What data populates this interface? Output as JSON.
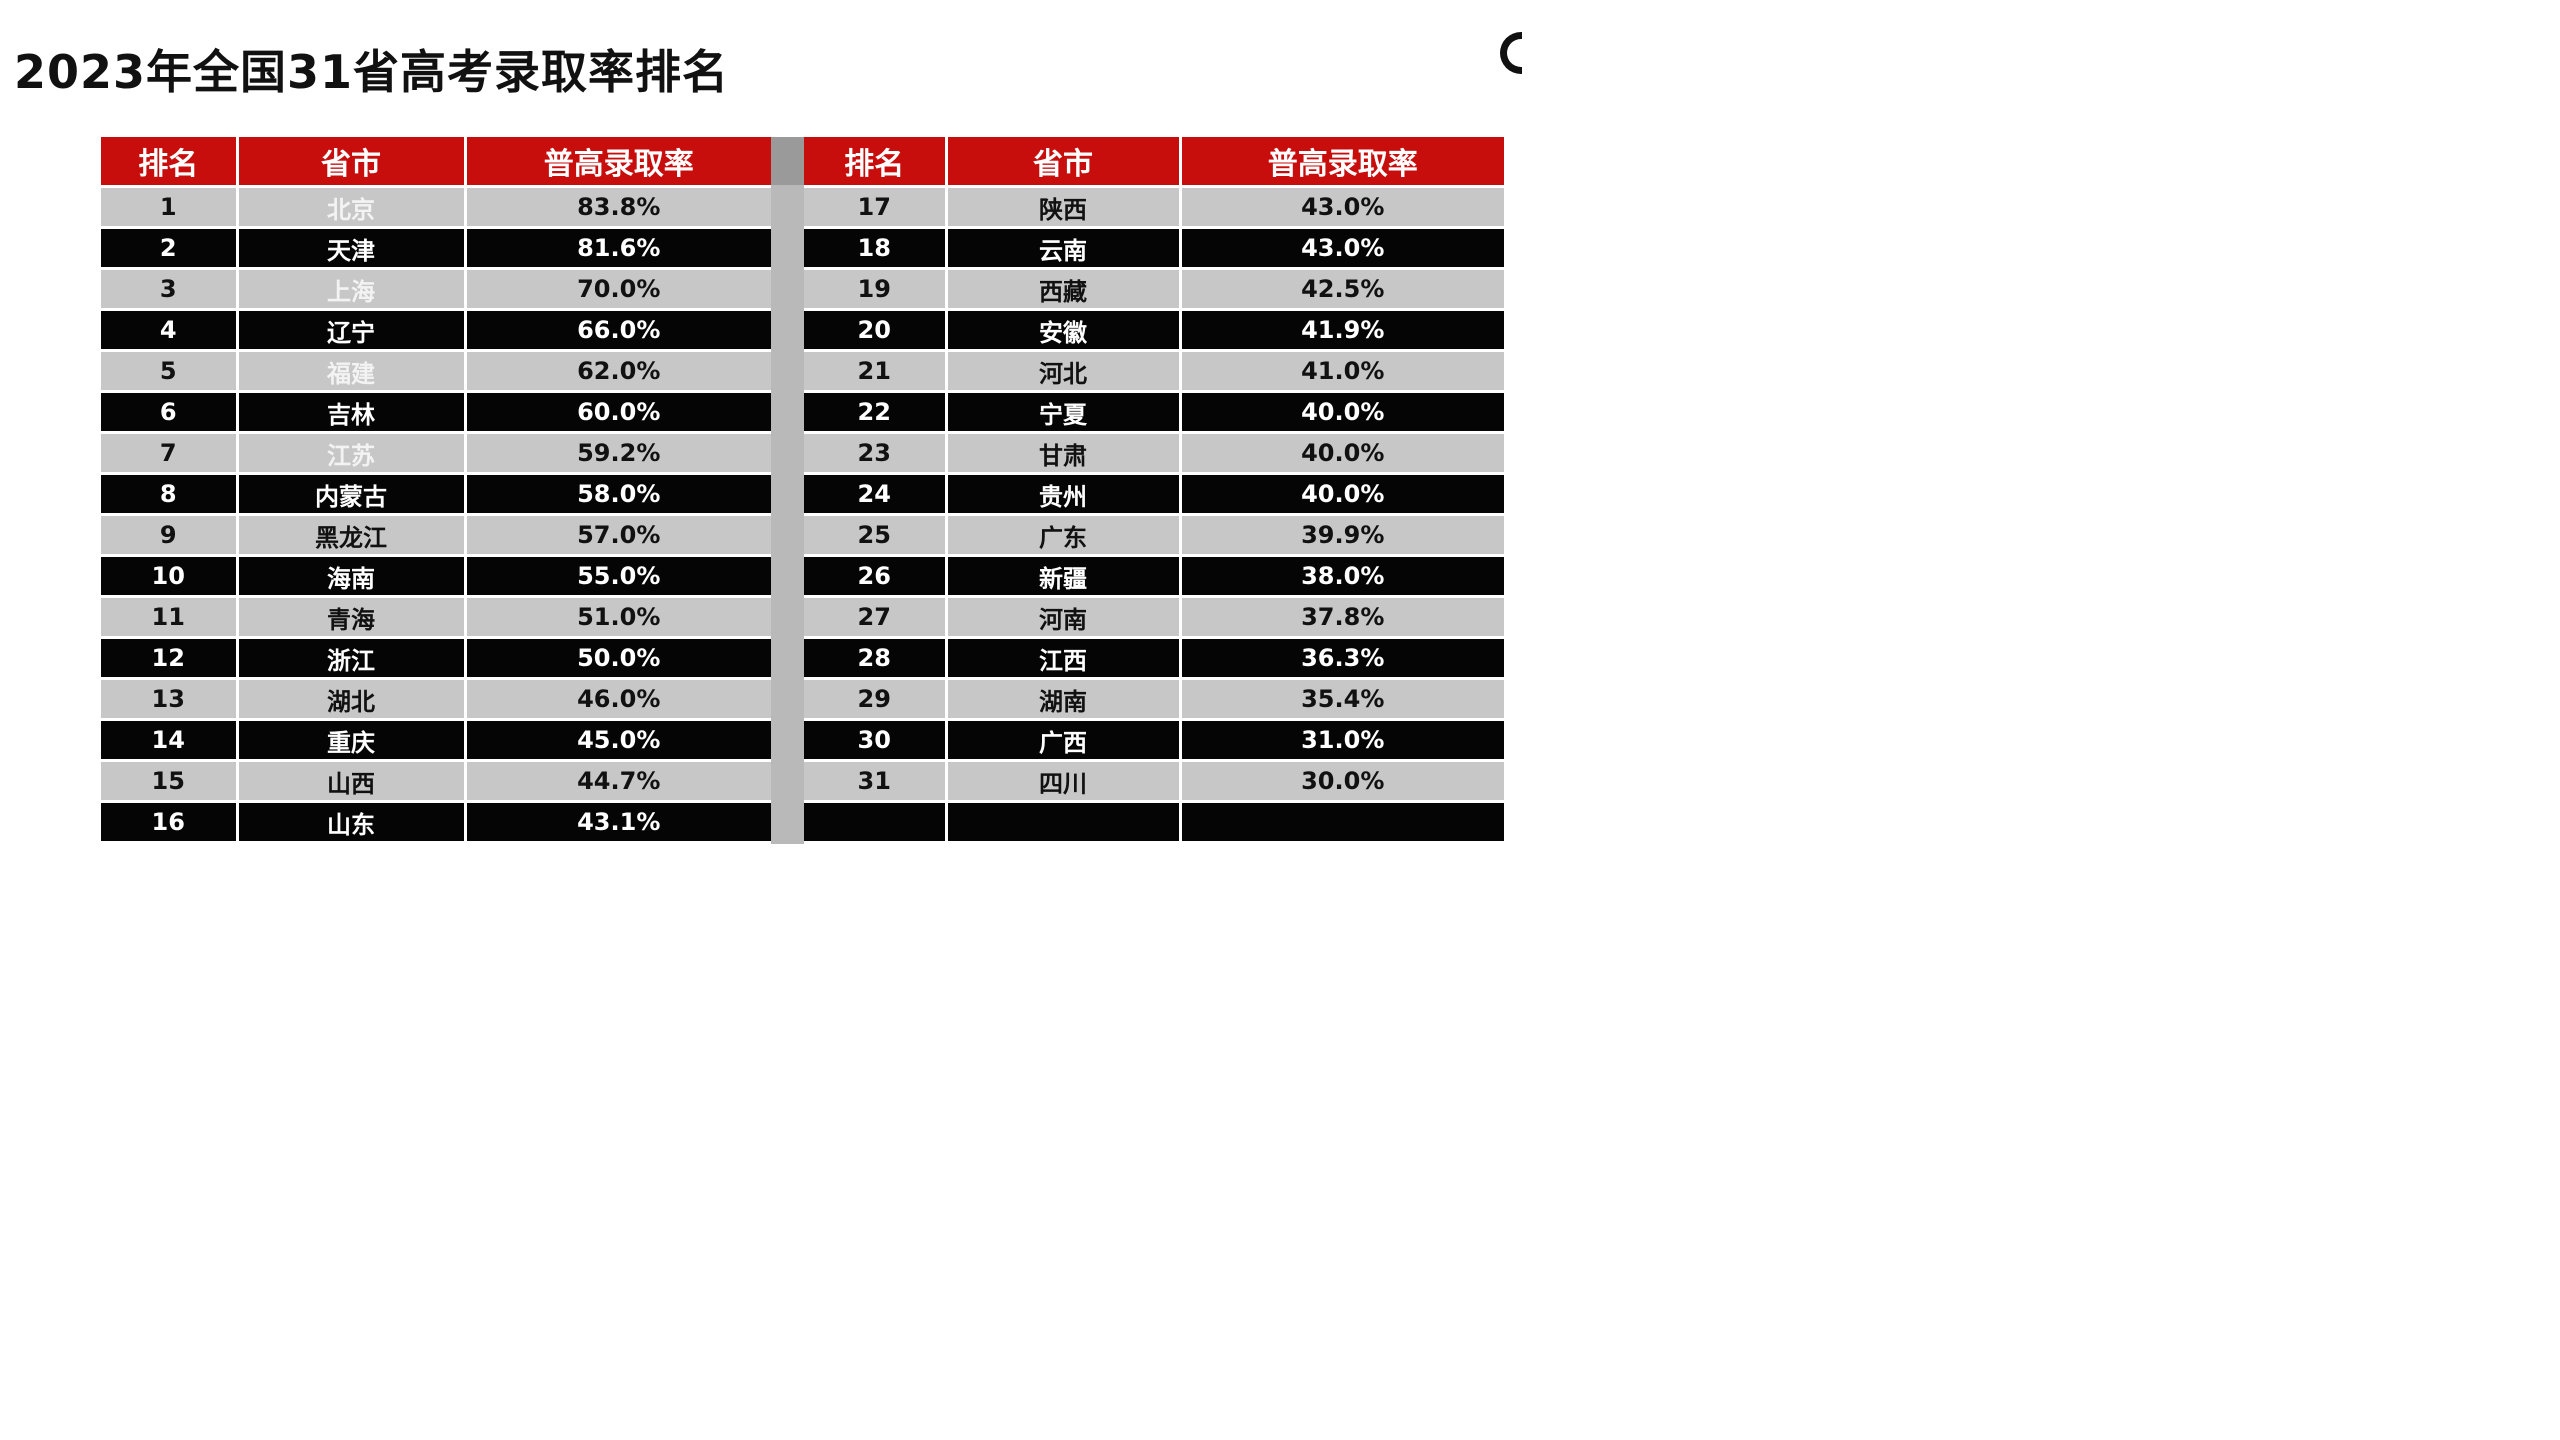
{
  "title": "2023年全国31省高考录取率排名",
  "headers": {
    "rank": "排名",
    "province": "省市",
    "rate": "普高录取率"
  },
  "left_rows": [
    {
      "rank": "1",
      "province": "北京",
      "rate": "83.8%"
    },
    {
      "rank": "2",
      "province": "天津",
      "rate": "81.6%"
    },
    {
      "rank": "3",
      "province": "上海",
      "rate": "70.0%"
    },
    {
      "rank": "4",
      "province": "辽宁",
      "rate": "66.0%"
    },
    {
      "rank": "5",
      "province": "福建",
      "rate": "62.0%"
    },
    {
      "rank": "6",
      "province": "吉林",
      "rate": "60.0%"
    },
    {
      "rank": "7",
      "province": "江苏",
      "rate": "59.2%"
    },
    {
      "rank": "8",
      "province": "内蒙古",
      "rate": "58.0%"
    },
    {
      "rank": "9",
      "province": "黑龙江",
      "rate": "57.0%"
    },
    {
      "rank": "10",
      "province": "海南",
      "rate": "55.0%"
    },
    {
      "rank": "11",
      "province": "青海",
      "rate": "51.0%"
    },
    {
      "rank": "12",
      "province": "浙江",
      "rate": "50.0%"
    },
    {
      "rank": "13",
      "province": "湖北",
      "rate": "46.0%"
    },
    {
      "rank": "14",
      "province": "重庆",
      "rate": "45.0%"
    },
    {
      "rank": "15",
      "province": "山西",
      "rate": "44.7%"
    },
    {
      "rank": "16",
      "province": "山东",
      "rate": "43.1%"
    }
  ],
  "right_rows": [
    {
      "rank": "17",
      "province": "陕西",
      "rate": "43.0%"
    },
    {
      "rank": "18",
      "province": "云南",
      "rate": "43.0%"
    },
    {
      "rank": "19",
      "province": "西藏",
      "rate": "42.5%"
    },
    {
      "rank": "20",
      "province": "安徽",
      "rate": "41.9%"
    },
    {
      "rank": "21",
      "province": "河北",
      "rate": "41.0%"
    },
    {
      "rank": "22",
      "province": "宁夏",
      "rate": "40.0%"
    },
    {
      "rank": "23",
      "province": "甘肃",
      "rate": "40.0%"
    },
    {
      "rank": "24",
      "province": "贵州",
      "rate": "40.0%"
    },
    {
      "rank": "25",
      "province": "广东",
      "rate": "39.9%"
    },
    {
      "rank": "26",
      "province": "新疆",
      "rate": "38.0%"
    },
    {
      "rank": "27",
      "province": "河南",
      "rate": "37.8%"
    },
    {
      "rank": "28",
      "province": "江西",
      "rate": "36.3%"
    },
    {
      "rank": "29",
      "province": "湖南",
      "rate": "35.4%"
    },
    {
      "rank": "30",
      "province": "广西",
      "rate": "31.0%"
    },
    {
      "rank": "31",
      "province": "四川",
      "rate": "30.0%"
    },
    {
      "rank": "",
      "province": "",
      "rate": ""
    }
  ],
  "colors": {
    "header_red": "#c80d0d",
    "row_gray": "#c7c7c7",
    "row_black": "#050505"
  }
}
